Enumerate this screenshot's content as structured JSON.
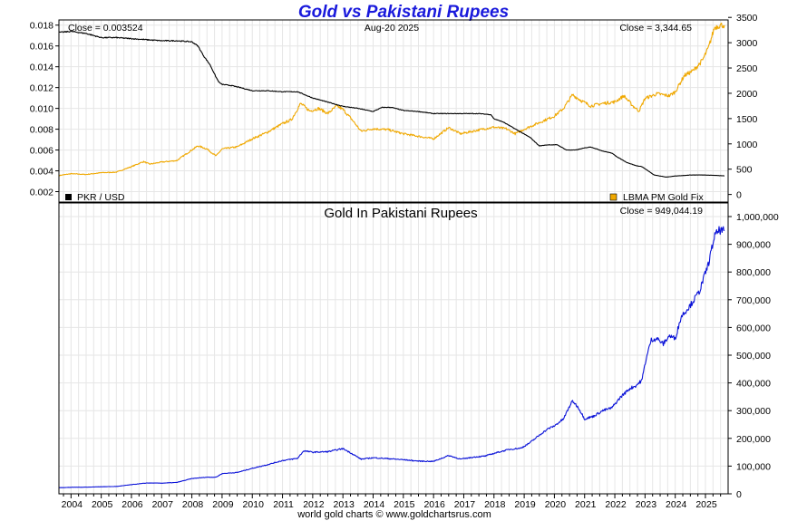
{
  "page": {
    "title": "Gold vs Pakistani Rupees",
    "footer": "world gold charts © www.goldchartsrus.com"
  },
  "colors": {
    "pkr": "#000000",
    "gold": "#f0a800",
    "gold_in_pkr": "#0a12d8",
    "title": "#1a1adc",
    "grid": "#e6e6e6"
  },
  "chart_data": [
    {
      "type": "line",
      "title": "",
      "date_label": "Aug-20  2025",
      "left_annotation": "Close = 0.003524",
      "right_annotation": "Close = 3,344.65",
      "grid": true,
      "legend_placement": "bottom",
      "y_left": {
        "ticks": [
          "0.002",
          "0.004",
          "0.006",
          "0.008",
          "0.010",
          "0.012",
          "0.014",
          "0.016",
          "0.018"
        ],
        "range": [
          0.001,
          0.0185
        ]
      },
      "y_right": {
        "ticks": [
          "0",
          "500",
          "1000",
          "1500",
          "2000",
          "2500",
          "3000",
          "3500"
        ],
        "range": [
          -150,
          3450
        ]
      },
      "series": [
        {
          "name": "PKR / USD",
          "axis": "left",
          "color": "#000000",
          "points": [
            [
              2003.6,
              0.0173
            ],
            [
              2004.0,
              0.0174
            ],
            [
              2004.5,
              0.0172
            ],
            [
              2005.0,
              0.0168
            ],
            [
              2005.5,
              0.0168
            ],
            [
              2006.0,
              0.0167
            ],
            [
              2006.5,
              0.0166
            ],
            [
              2007.0,
              0.0165
            ],
            [
              2007.5,
              0.0165
            ],
            [
              2008.0,
              0.0164
            ],
            [
              2008.2,
              0.016
            ],
            [
              2008.4,
              0.015
            ],
            [
              2008.6,
              0.0142
            ],
            [
              2008.8,
              0.013
            ],
            [
              2008.9,
              0.0125
            ],
            [
              2009.0,
              0.0123
            ],
            [
              2009.3,
              0.0122
            ],
            [
              2009.6,
              0.012
            ],
            [
              2010.0,
              0.0117
            ],
            [
              2010.5,
              0.0117
            ],
            [
              2011.0,
              0.0116
            ],
            [
              2011.5,
              0.0116
            ],
            [
              2012.0,
              0.011
            ],
            [
              2012.5,
              0.0106
            ],
            [
              2013.0,
              0.0102
            ],
            [
              2013.5,
              0.01
            ],
            [
              2014.0,
              0.0097
            ],
            [
              2014.3,
              0.0101
            ],
            [
              2014.6,
              0.0101
            ],
            [
              2015.0,
              0.0098
            ],
            [
              2015.5,
              0.0097
            ],
            [
              2016.0,
              0.0095
            ],
            [
              2016.5,
              0.0095
            ],
            [
              2017.0,
              0.0095
            ],
            [
              2017.5,
              0.0095
            ],
            [
              2017.9,
              0.0094
            ],
            [
              2018.0,
              0.009
            ],
            [
              2018.3,
              0.0087
            ],
            [
              2018.6,
              0.0082
            ],
            [
              2018.9,
              0.0077
            ],
            [
              2019.2,
              0.0072
            ],
            [
              2019.5,
              0.0064
            ],
            [
              2019.8,
              0.0065
            ],
            [
              2020.1,
              0.0065
            ],
            [
              2020.4,
              0.006
            ],
            [
              2020.7,
              0.006
            ],
            [
              2021.0,
              0.0062
            ],
            [
              2021.2,
              0.0063
            ],
            [
              2021.6,
              0.0059
            ],
            [
              2021.9,
              0.0057
            ],
            [
              2022.1,
              0.0053
            ],
            [
              2022.4,
              0.0048
            ],
            [
              2022.7,
              0.0045
            ],
            [
              2022.9,
              0.0044
            ],
            [
              2023.1,
              0.004
            ],
            [
              2023.3,
              0.0036
            ],
            [
              2023.5,
              0.0035
            ],
            [
              2023.7,
              0.0034
            ],
            [
              2024.0,
              0.0035
            ],
            [
              2024.5,
              0.0036
            ],
            [
              2025.0,
              0.0036
            ],
            [
              2025.63,
              0.003524
            ]
          ]
        },
        {
          "name": "LBMA PM Gold Fix",
          "axis": "right",
          "color": "#f0a800",
          "points": [
            [
              2003.6,
              375
            ],
            [
              2004.0,
              410
            ],
            [
              2004.5,
              395
            ],
            [
              2005.0,
              430
            ],
            [
              2005.5,
              440
            ],
            [
              2006.0,
              550
            ],
            [
              2006.4,
              650
            ],
            [
              2006.6,
              600
            ],
            [
              2007.0,
              640
            ],
            [
              2007.5,
              670
            ],
            [
              2008.0,
              880
            ],
            [
              2008.2,
              960
            ],
            [
              2008.5,
              900
            ],
            [
              2008.8,
              760
            ],
            [
              2009.0,
              900
            ],
            [
              2009.5,
              940
            ],
            [
              2010.0,
              1100
            ],
            [
              2010.5,
              1230
            ],
            [
              2011.0,
              1400
            ],
            [
              2011.3,
              1480
            ],
            [
              2011.6,
              1800
            ],
            [
              2011.9,
              1650
            ],
            [
              2012.2,
              1700
            ],
            [
              2012.5,
              1600
            ],
            [
              2012.8,
              1750
            ],
            [
              2013.0,
              1680
            ],
            [
              2013.3,
              1480
            ],
            [
              2013.6,
              1250
            ],
            [
              2014.0,
              1300
            ],
            [
              2014.5,
              1280
            ],
            [
              2015.0,
              1200
            ],
            [
              2015.5,
              1150
            ],
            [
              2016.0,
              1100
            ],
            [
              2016.5,
              1320
            ],
            [
              2016.9,
              1200
            ],
            [
              2017.3,
              1250
            ],
            [
              2017.7,
              1300
            ],
            [
              2018.0,
              1330
            ],
            [
              2018.4,
              1300
            ],
            [
              2018.7,
              1200
            ],
            [
              2019.0,
              1290
            ],
            [
              2019.5,
              1420
            ],
            [
              2020.0,
              1550
            ],
            [
              2020.3,
              1700
            ],
            [
              2020.6,
              1970
            ],
            [
              2020.9,
              1850
            ],
            [
              2021.2,
              1750
            ],
            [
              2021.6,
              1800
            ],
            [
              2022.0,
              1830
            ],
            [
              2022.3,
              1950
            ],
            [
              2022.6,
              1750
            ],
            [
              2022.8,
              1650
            ],
            [
              2023.0,
              1900
            ],
            [
              2023.4,
              1990
            ],
            [
              2023.8,
              1950
            ],
            [
              2024.0,
              2030
            ],
            [
              2024.3,
              2350
            ],
            [
              2024.6,
              2450
            ],
            [
              2024.9,
              2650
            ],
            [
              2025.1,
              2900
            ],
            [
              2025.3,
              3300
            ],
            [
              2025.5,
              3350
            ],
            [
              2025.63,
              3344.65
            ]
          ]
        }
      ]
    },
    {
      "type": "line",
      "title": "Gold In Pakistani Rupees",
      "right_annotation": "Close = 949,044.19",
      "grid": true,
      "x_ticks": [
        "2004",
        "2005",
        "2006",
        "2007",
        "2008",
        "2009",
        "2010",
        "2011",
        "2012",
        "2013",
        "2014",
        "2015",
        "2016",
        "2017",
        "2018",
        "2019",
        "2020",
        "2021",
        "2022",
        "2023",
        "2024",
        "2025"
      ],
      "x_range": [
        2003.6,
        2025.75
      ],
      "y_right": {
        "ticks": [
          "0",
          "100,000",
          "200,000",
          "300,000",
          "400,000",
          "500,000",
          "600,000",
          "700,000",
          "800,000",
          "900,000",
          "1,000,000"
        ],
        "range": [
          0,
          1000000
        ]
      },
      "series": [
        {
          "name": "",
          "color": "#0a12d8",
          "points": [
            [
              2003.6,
              22000
            ],
            [
              2004.0,
              23500
            ],
            [
              2004.5,
              24000
            ],
            [
              2005.0,
              25500
            ],
            [
              2005.5,
              26500
            ],
            [
              2006.0,
              33000
            ],
            [
              2006.5,
              39000
            ],
            [
              2007.0,
              38500
            ],
            [
              2007.5,
              41000
            ],
            [
              2008.0,
              55000
            ],
            [
              2008.5,
              60000
            ],
            [
              2008.8,
              60000
            ],
            [
              2009.0,
              73000
            ],
            [
              2009.5,
              77000
            ],
            [
              2010.0,
              92000
            ],
            [
              2010.5,
              105000
            ],
            [
              2011.0,
              120000
            ],
            [
              2011.5,
              128000
            ],
            [
              2011.7,
              155000
            ],
            [
              2012.0,
              150000
            ],
            [
              2012.5,
              152000
            ],
            [
              2013.0,
              163000
            ],
            [
              2013.3,
              145000
            ],
            [
              2013.6,
              125000
            ],
            [
              2014.0,
              130000
            ],
            [
              2014.5,
              127000
            ],
            [
              2015.0,
              123000
            ],
            [
              2015.5,
              118000
            ],
            [
              2016.0,
              117000
            ],
            [
              2016.5,
              138000
            ],
            [
              2016.9,
              125000
            ],
            [
              2017.3,
              132000
            ],
            [
              2017.7,
              136000
            ],
            [
              2018.0,
              146000
            ],
            [
              2018.5,
              160000
            ],
            [
              2018.9,
              165000
            ],
            [
              2019.2,
              185000
            ],
            [
              2019.6,
              220000
            ],
            [
              2019.8,
              235000
            ],
            [
              2020.0,
              245000
            ],
            [
              2020.3,
              270000
            ],
            [
              2020.5,
              315000
            ],
            [
              2020.6,
              335000
            ],
            [
              2020.8,
              310000
            ],
            [
              2021.0,
              270000
            ],
            [
              2021.3,
              280000
            ],
            [
              2021.6,
              300000
            ],
            [
              2021.9,
              310000
            ],
            [
              2022.2,
              350000
            ],
            [
              2022.5,
              380000
            ],
            [
              2022.7,
              390000
            ],
            [
              2022.9,
              410000
            ],
            [
              2023.0,
              470000
            ],
            [
              2023.2,
              555000
            ],
            [
              2023.4,
              560000
            ],
            [
              2023.6,
              540000
            ],
            [
              2023.8,
              570000
            ],
            [
              2024.0,
              560000
            ],
            [
              2024.2,
              640000
            ],
            [
              2024.5,
              680000
            ],
            [
              2024.8,
              730000
            ],
            [
              2025.1,
              830000
            ],
            [
              2025.3,
              930000
            ],
            [
              2025.45,
              950000
            ],
            [
              2025.63,
              949044.19
            ]
          ]
        }
      ]
    }
  ]
}
